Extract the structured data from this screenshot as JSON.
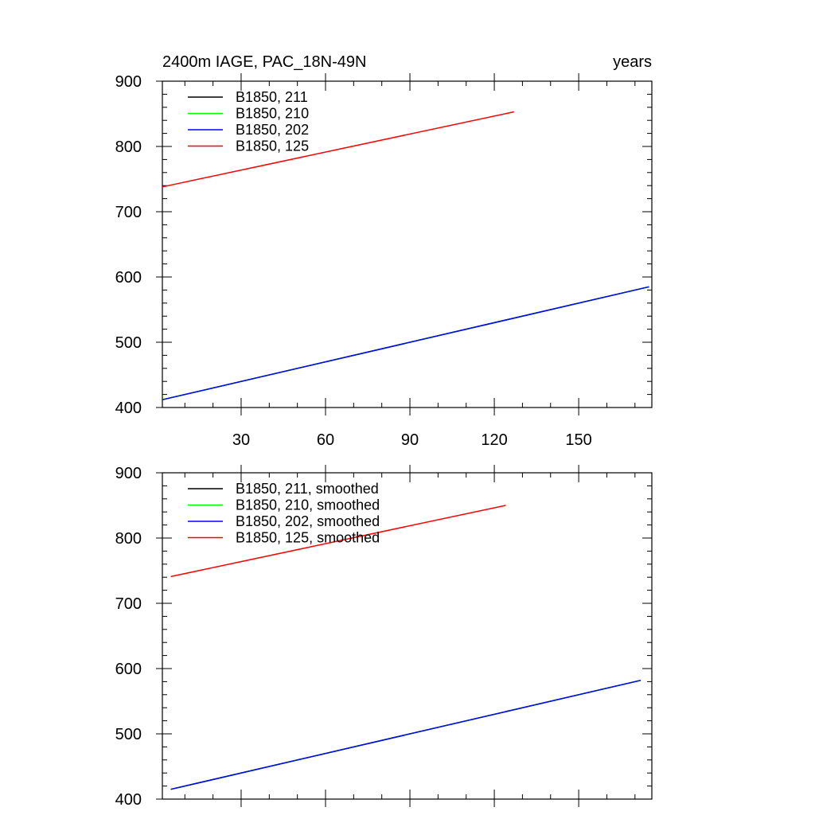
{
  "chart_data": [
    {
      "type": "line",
      "title": "2400m IAGE, PAC_18N-49N",
      "units_label": "years",
      "xlabel": "",
      "ylabel": "",
      "xlim": [
        2,
        176
      ],
      "ylim": [
        400,
        900
      ],
      "xticks": [
        30,
        60,
        90,
        120,
        150
      ],
      "yticks": [
        400,
        500,
        600,
        700,
        800,
        900
      ],
      "show_x_tick_labels": true,
      "legend_position": "top-left",
      "series": [
        {
          "name": "B1850, 211",
          "color": "#000000",
          "x": [
            2,
            175
          ],
          "y": [
            412,
            585
          ]
        },
        {
          "name": "B1850, 210",
          "color": "#00ff00",
          "x": [
            2,
            175
          ],
          "y": [
            412,
            585
          ]
        },
        {
          "name": "B1850, 202",
          "color": "#0000ff",
          "x": [
            2,
            175
          ],
          "y": [
            412,
            585
          ]
        },
        {
          "name": "B1850, 125",
          "color": "#ff0000",
          "x": [
            2,
            127
          ],
          "y": [
            738,
            853
          ]
        }
      ]
    },
    {
      "type": "line",
      "title": "",
      "xlabel": "",
      "ylabel": "",
      "xlim": [
        2,
        176
      ],
      "ylim": [
        400,
        900
      ],
      "xticks": [
        30,
        60,
        90,
        120,
        150
      ],
      "yticks": [
        400,
        500,
        600,
        700,
        800,
        900
      ],
      "show_x_tick_labels": false,
      "legend_position": "top-left",
      "series": [
        {
          "name": "B1850, 211, smoothed",
          "color": "#000000",
          "x": [
            5,
            172
          ],
          "y": [
            415,
            582
          ]
        },
        {
          "name": "B1850, 210, smoothed",
          "color": "#00ff00",
          "x": [
            5,
            172
          ],
          "y": [
            415,
            582
          ]
        },
        {
          "name": "B1850, 202, smoothed",
          "color": "#0000ff",
          "x": [
            5,
            172
          ],
          "y": [
            415,
            582
          ]
        },
        {
          "name": "B1850, 125, smoothed",
          "color": "#ff0000",
          "x": [
            5,
            124
          ],
          "y": [
            741,
            850
          ]
        }
      ]
    }
  ]
}
